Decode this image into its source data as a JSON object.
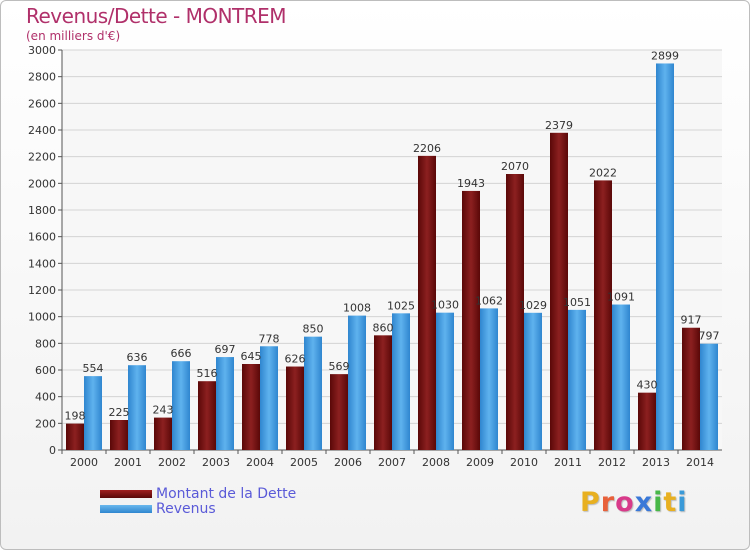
{
  "header": {
    "title": "Revenus/Dette - MONTREM",
    "subtitle": "(en milliers d'€)"
  },
  "legend": {
    "dette_label": "Montant de la Dette",
    "revenus_label": "Revenus"
  },
  "logo": {
    "letters": [
      "P",
      "r",
      "o",
      "x",
      "i",
      "t",
      "i"
    ],
    "colors": [
      "#e8b020",
      "#e8603a",
      "#d83a8a",
      "#3a78d8",
      "#48b848",
      "#e8b020",
      "#3a9ad8"
    ]
  },
  "chart_data": {
    "type": "bar",
    "title": "Revenus/Dette - MONTREM",
    "subtitle": "(en milliers d'€)",
    "categories": [
      "2000",
      "2001",
      "2002",
      "2003",
      "2004",
      "2005",
      "2006",
      "2007",
      "2008",
      "2009",
      "2010",
      "2011",
      "2012",
      "2013",
      "2014"
    ],
    "series": [
      {
        "name": "Montant de la Dette",
        "color": "#7a1414",
        "values": [
          198,
          225,
          243,
          516,
          645,
          626,
          569,
          860,
          2206,
          1943,
          2070,
          2379,
          2022,
          430,
          917
        ]
      },
      {
        "name": "Revenus",
        "color": "#3b94de",
        "values": [
          554,
          636,
          666,
          697,
          778,
          850,
          1008,
          1025,
          1030,
          1062,
          1029,
          1051,
          1091,
          2899,
          797
        ]
      }
    ],
    "ylim": [
      0,
      3000
    ],
    "yticks": [
      0,
      200,
      400,
      600,
      800,
      1000,
      1200,
      1400,
      1600,
      1800,
      2000,
      2200,
      2400,
      2600,
      2800,
      3000
    ],
    "grid": true,
    "legend_position": "bottom-left"
  }
}
